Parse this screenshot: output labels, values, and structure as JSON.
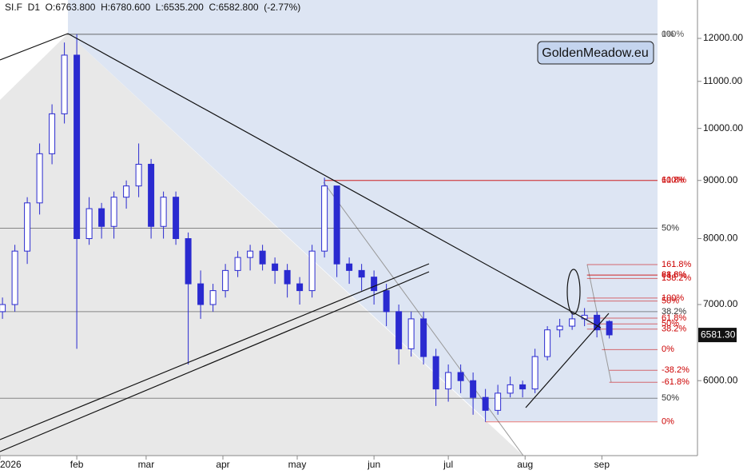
{
  "chart_data": {
    "type": "candlestick",
    "header": "SI.F  D1  O:6763.800  H:6780.600  L:6535.200  C:6582.800  (-2.77%)",
    "badge": "GoldenMeadow.eu",
    "color": "#2a2ad0",
    "log_scale": true,
    "x": [
      1,
      6,
      11,
      16,
      21,
      26,
      31,
      36,
      41,
      46,
      51,
      56,
      61,
      66,
      71,
      76,
      81,
      86,
      91,
      96,
      101,
      106,
      111,
      116,
      121,
      126,
      131,
      136,
      141,
      146,
      151,
      156,
      161,
      166,
      171,
      176,
      181,
      186,
      191,
      196,
      201,
      206,
      211,
      216,
      221,
      226,
      231,
      236,
      241,
      246
    ],
    "open": [
      6900,
      7000,
      7800,
      8600,
      9500,
      10300,
      11600,
      8000,
      8500,
      8200,
      8700,
      8900,
      9300,
      8200,
      8700,
      8000,
      7300,
      7000,
      7200,
      7500,
      7700,
      7800,
      7600,
      7500,
      7300,
      7200,
      7800,
      8900,
      7600,
      7500,
      7400,
      7200,
      6900,
      6400,
      6800,
      6300,
      5900,
      6100,
      6000,
      5800,
      5650,
      5850,
      5950,
      5900,
      6300,
      6650,
      6700,
      6800,
      6850,
      6763.8
    ],
    "high": [
      7100,
      7900,
      8700,
      9700,
      10500,
      11900,
      12100,
      8700,
      8600,
      8800,
      9000,
      9700,
      9400,
      8800,
      8800,
      8100,
      7500,
      7300,
      7600,
      7800,
      7900,
      7900,
      7700,
      7600,
      7400,
      7900,
      9050,
      8900,
      7700,
      7600,
      7500,
      7300,
      7000,
      6900,
      6900,
      6400,
      6200,
      6200,
      6100,
      5900,
      5950,
      6050,
      6000,
      6400,
      6700,
      6800,
      6900,
      6950,
      6900,
      6780.6
    ],
    "low": [
      6800,
      6900,
      7600,
      8400,
      9300,
      10100,
      6400,
      7900,
      8000,
      8000,
      8500,
      8700,
      8000,
      8000,
      7900,
      6200,
      6800,
      6900,
      7100,
      7400,
      7500,
      7500,
      7300,
      7100,
      7000,
      7100,
      7700,
      7400,
      7300,
      7200,
      7000,
      6700,
      6200,
      6300,
      6200,
      5700,
      5750,
      5850,
      5600,
      5520,
      5600,
      5800,
      5800,
      5850,
      6250,
      6550,
      6650,
      6700,
      6550,
      6535.2
    ],
    "close": [
      7000,
      7800,
      8600,
      9500,
      10300,
      11600,
      8000,
      8500,
      8200,
      8700,
      8900,
      9300,
      8200,
      8700,
      8000,
      7300,
      7000,
      7200,
      7500,
      7700,
      7800,
      7600,
      7500,
      7300,
      7200,
      7800,
      8900,
      7600,
      7500,
      7400,
      7200,
      6900,
      6400,
      6800,
      6300,
      5900,
      6100,
      6000,
      5800,
      5650,
      5850,
      5950,
      5900,
      6300,
      6650,
      6700,
      6800,
      6850,
      6650,
      6582.8
    ],
    "xlim": [
      0,
      281.6
    ],
    "xticks": [
      {
        "value": 0,
        "label": "2026"
      },
      {
        "value": 31,
        "label": "feb"
      },
      {
        "value": 59,
        "label": "mar"
      },
      {
        "value": 90,
        "label": "apr"
      },
      {
        "value": 120,
        "label": "may"
      },
      {
        "value": 151,
        "label": "jun"
      },
      {
        "value": 181,
        "label": "jul"
      },
      {
        "value": 212,
        "label": "aug"
      },
      {
        "value": 243,
        "label": "sep"
      }
    ],
    "ylim": [
      5155,
      12970
    ],
    "yticks": [
      {
        "value": 6000,
        "label": "6000.00"
      },
      {
        "value": 7000,
        "label": "7000.00"
      },
      {
        "value": 8000,
        "label": "8000.00"
      },
      {
        "value": 9000,
        "label": "9000.00"
      },
      {
        "value": 10000,
        "label": "10000.00"
      },
      {
        "value": 11000,
        "label": "11000.00"
      },
      {
        "value": 12000,
        "label": "12000.00"
      }
    ],
    "last_price": {
      "value": 6581.3,
      "label": "6581.30"
    },
    "levels": [
      {
        "label": "0%",
        "value": 12100,
        "color": "#555555",
        "from": 27
      },
      {
        "label": "100%",
        "value": 12100,
        "color": "#555555",
        "from": 27
      },
      {
        "label": "100%",
        "value": 9000,
        "color": "#cc0000",
        "from": 131
      },
      {
        "label": "61.8%",
        "value": 9000,
        "color": "#cc0000",
        "from": 131
      },
      {
        "label": "50%",
        "value": 8170,
        "color": "#333333",
        "from": 0
      },
      {
        "label": "161.8%",
        "value": 7590,
        "color": "#cc0000",
        "from": 237
      },
      {
        "label": "88.6%",
        "value": 7430,
        "color": "#cc0000",
        "from": 237
      },
      {
        "label": "61.8%",
        "value": 7430,
        "color": "#cc0000",
        "from": 237
      },
      {
        "label": "138.2%",
        "value": 7380,
        "color": "#cc0000",
        "from": 237
      },
      {
        "label": "100%",
        "value": 7093,
        "color": "#cc0000",
        "from": 237
      },
      {
        "label": "50%",
        "value": 7050,
        "color": "#cc0000",
        "from": 237
      },
      {
        "label": "38.2%",
        "value": 6900,
        "color": "#333333",
        "from": 0
      },
      {
        "label": "61.8%",
        "value": 6810,
        "color": "#cc0000",
        "from": 237
      },
      {
        "label": "50%",
        "value": 6730,
        "color": "#cc0000",
        "from": 237
      },
      {
        "label": "38.2%",
        "value": 6660,
        "color": "#cc0000",
        "from": 237
      },
      {
        "label": "0%",
        "value": 6390,
        "color": "#cc0000",
        "from": 243
      },
      {
        "label": "-38.2%",
        "value": 6127,
        "color": "#cc0000",
        "from": 246
      },
      {
        "label": "-61.8%",
        "value": 5980,
        "color": "#cc0000",
        "from": 246
      },
      {
        "label": "50%",
        "value": 5790,
        "color": "#333333",
        "from": 0
      },
      {
        "label": "0%",
        "value": 5520,
        "color": "#cc0000",
        "from": 196
      }
    ]
  }
}
